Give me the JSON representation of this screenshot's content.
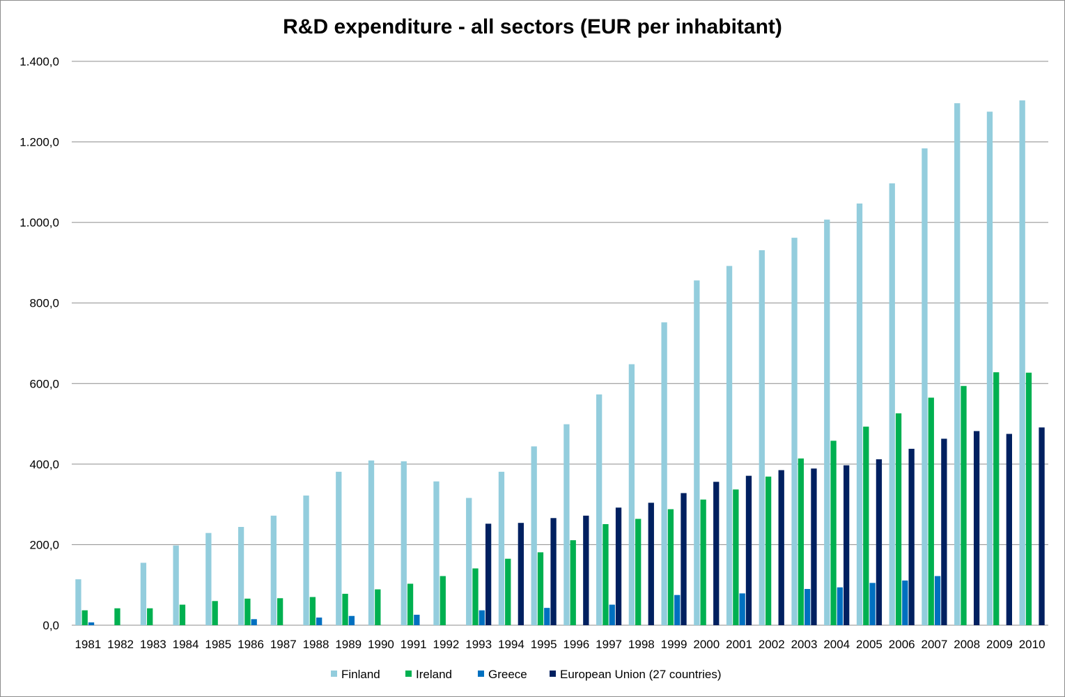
{
  "chart_data": {
    "type": "bar",
    "title": "R&D expenditure - all sectors (EUR per inhabitant)",
    "xlabel": "",
    "ylabel": "",
    "ylim": [
      0,
      1400
    ],
    "y_ticks": [
      "0,0",
      "200,0",
      "400,0",
      "600,0",
      "800,0",
      "1.000,0",
      "1.200,0",
      "1.400,0"
    ],
    "y_tick_values": [
      0,
      200,
      400,
      600,
      800,
      1000,
      1200,
      1400
    ],
    "grid": true,
    "legend_position": "bottom",
    "categories": [
      "1981",
      "1982",
      "1983",
      "1984",
      "1985",
      "1986",
      "1987",
      "1988",
      "1989",
      "1990",
      "1991",
      "1992",
      "1993",
      "1994",
      "1995",
      "1996",
      "1997",
      "1998",
      "1999",
      "2000",
      "2001",
      "2002",
      "2003",
      "2004",
      "2005",
      "2006",
      "2007",
      "2008",
      "2009",
      "2010"
    ],
    "series": [
      {
        "name": "Finland",
        "color": "#93CDDD",
        "values": [
          114,
          null,
          155,
          198,
          229,
          244,
          272,
          322,
          381,
          409,
          407,
          357,
          316,
          381,
          444,
          499,
          573,
          648,
          752,
          856,
          892,
          931,
          962,
          1007,
          1047,
          1097,
          1184,
          1296,
          1275,
          1303
        ]
      },
      {
        "name": "Ireland",
        "color": "#00B050",
        "values": [
          37,
          42,
          42,
          51,
          60,
          66,
          67,
          70,
          78,
          89,
          103,
          122,
          141,
          165,
          181,
          211,
          251,
          264,
          288,
          312,
          337,
          369,
          414,
          458,
          493,
          526,
          565,
          594,
          628,
          627
        ]
      },
      {
        "name": "Greece",
        "color": "#0070C0",
        "values": [
          7,
          null,
          null,
          null,
          null,
          15,
          null,
          19,
          23,
          null,
          26,
          null,
          37,
          null,
          43,
          null,
          51,
          null,
          75,
          null,
          79,
          null,
          90,
          94,
          105,
          111,
          122,
          null,
          null,
          null
        ]
      },
      {
        "name": "European Union (27 countries)",
        "color": "#002060",
        "values": [
          null,
          null,
          null,
          null,
          null,
          null,
          null,
          null,
          null,
          null,
          null,
          null,
          252,
          254,
          266,
          272,
          292,
          304,
          328,
          356,
          371,
          385,
          389,
          397,
          412,
          438,
          463,
          482,
          475,
          491
        ]
      }
    ]
  }
}
